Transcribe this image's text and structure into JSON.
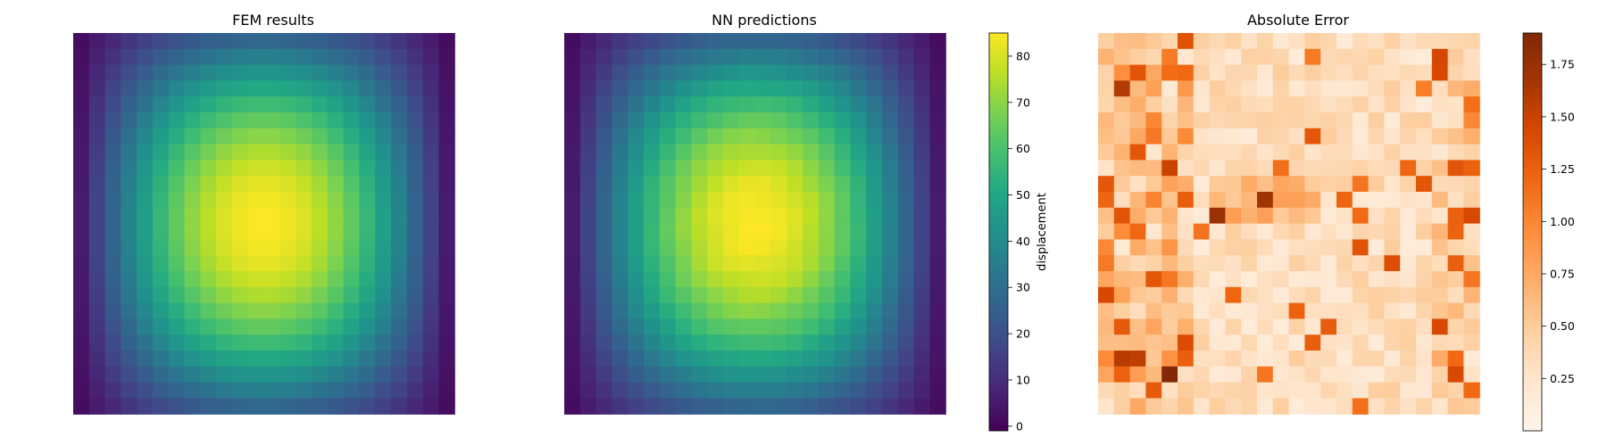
{
  "chart_data": [
    {
      "type": "heatmap",
      "title": "FEM results",
      "field": "displacement",
      "grid": {
        "rows": 24,
        "cols": 24
      },
      "peak": {
        "row": 12,
        "col": 12,
        "value": 85
      },
      "profile": "sin(pi*x)*sin(pi*y) style bump, zero at left/right edges, approx 20-30 at top/bottom edges",
      "colormap": "viridis",
      "axes_visible": false
    },
    {
      "type": "heatmap",
      "title": "NN predictions",
      "field": "displacement",
      "grid": {
        "rows": 24,
        "cols": 24
      },
      "peak": {
        "row": 12,
        "col": 12,
        "value": 85
      },
      "colormap": "viridis",
      "axes_visible": false,
      "colorbar": {
        "label": "displacement",
        "range": [
          -1,
          85
        ],
        "ticks": [
          0,
          10,
          20,
          30,
          40,
          50,
          60,
          70,
          80
        ]
      }
    },
    {
      "type": "heatmap",
      "title": "Absolute Error",
      "grid": {
        "rows": 24,
        "cols": 24
      },
      "colormap": "Oranges",
      "range": [
        0,
        1.9
      ],
      "axes_visible": false,
      "colorbar": {
        "label": "",
        "range": [
          0,
          1.9
        ],
        "ticks": [
          "0.25",
          "0.50",
          "0.75",
          "1.00",
          "1.25",
          "1.50",
          "1.75"
        ]
      }
    }
  ],
  "colors": {
    "viridis": [
      "#440154",
      "#482475",
      "#414487",
      "#355f8d",
      "#2a788e",
      "#21918c",
      "#22a884",
      "#44bf70",
      "#7ad151",
      "#bddf26",
      "#fde725"
    ],
    "oranges": [
      "#fff5eb",
      "#fee6ce",
      "#fdd0a2",
      "#fdae6b",
      "#fd8d3c",
      "#f16913",
      "#d94801",
      "#a63603",
      "#7f2704"
    ]
  }
}
